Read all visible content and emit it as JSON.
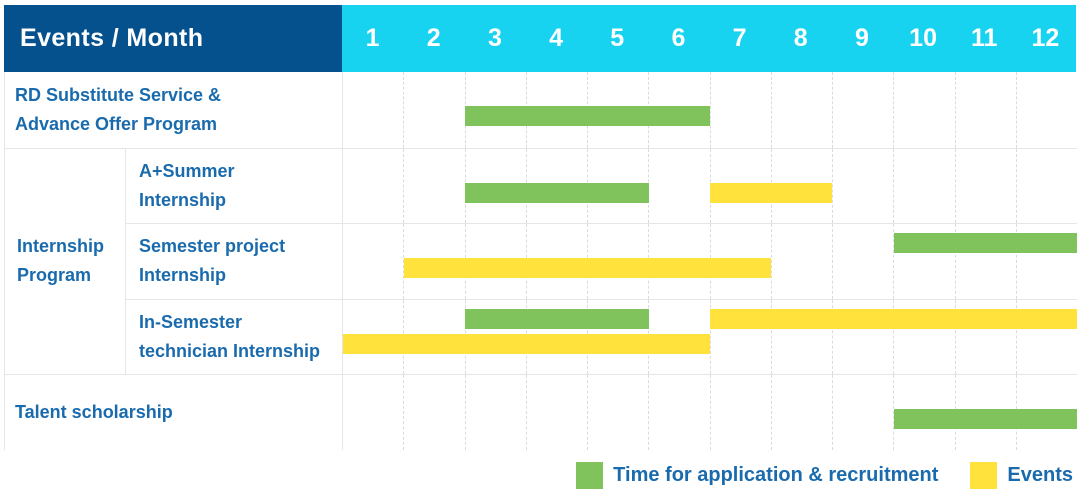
{
  "header": {
    "label": "Events / Month",
    "months": [
      "1",
      "2",
      "3",
      "4",
      "5",
      "6",
      "7",
      "8",
      "9",
      "10",
      "11",
      "12"
    ]
  },
  "chart_data": {
    "type": "bar",
    "subtype": "gantt-timeline",
    "title": "Events / Month",
    "x_axis": {
      "label": "Month",
      "range": [
        1,
        12
      ],
      "ticks": [
        1,
        2,
        3,
        4,
        5,
        6,
        7,
        8,
        9,
        10,
        11,
        12
      ]
    },
    "rows": [
      {
        "group": "",
        "label_lines": [
          "RD Substitute Service &",
          "Advance Offer Program"
        ],
        "bars": [
          {
            "series": "application",
            "start_month": 3,
            "end_month": 6,
            "band": "single"
          }
        ]
      },
      {
        "group": "Internship Program",
        "label_lines": [
          "A+Summer",
          "Internship"
        ],
        "bars": [
          {
            "series": "application",
            "start_month": 3,
            "end_month": 5,
            "band": "single"
          },
          {
            "series": "event",
            "start_month": 7,
            "end_month": 8,
            "band": "single"
          }
        ]
      },
      {
        "group": "Internship Program",
        "label_lines": [
          "Semester project",
          "Internship"
        ],
        "bars": [
          {
            "series": "application",
            "start_month": 10,
            "end_month": 12,
            "band": "upper"
          },
          {
            "series": "event",
            "start_month": 2,
            "end_month": 7,
            "band": "lower"
          }
        ]
      },
      {
        "group": "Internship Program",
        "label_lines": [
          "In-Semester",
          "technician Internship"
        ],
        "bars": [
          {
            "series": "application",
            "start_month": 3,
            "end_month": 5,
            "band": "upper"
          },
          {
            "series": "event",
            "start_month": 7,
            "end_month": 12,
            "band": "upper"
          },
          {
            "series": "event",
            "start_month": 1,
            "end_month": 6,
            "band": "lower"
          }
        ]
      },
      {
        "group": "",
        "label_lines": [
          "Talent scholarship"
        ],
        "bars": [
          {
            "series": "application",
            "start_month": 10,
            "end_month": 12,
            "band": "single"
          }
        ]
      }
    ],
    "legend": [
      {
        "series": "application",
        "label": "Time for application & recruitment",
        "color": "#80C35C"
      },
      {
        "series": "event",
        "label": "Events",
        "color": "#FFE23C"
      }
    ],
    "legend_position": "bottom-right",
    "grid": "vertical-dashed"
  },
  "colors": {
    "header_bg": "#05518E",
    "months_bg": "#17D3F0",
    "application": "#80C35C",
    "event": "#FFE23C",
    "label_text": "#1A6BAD",
    "grid_line": "#E6E6E6"
  }
}
